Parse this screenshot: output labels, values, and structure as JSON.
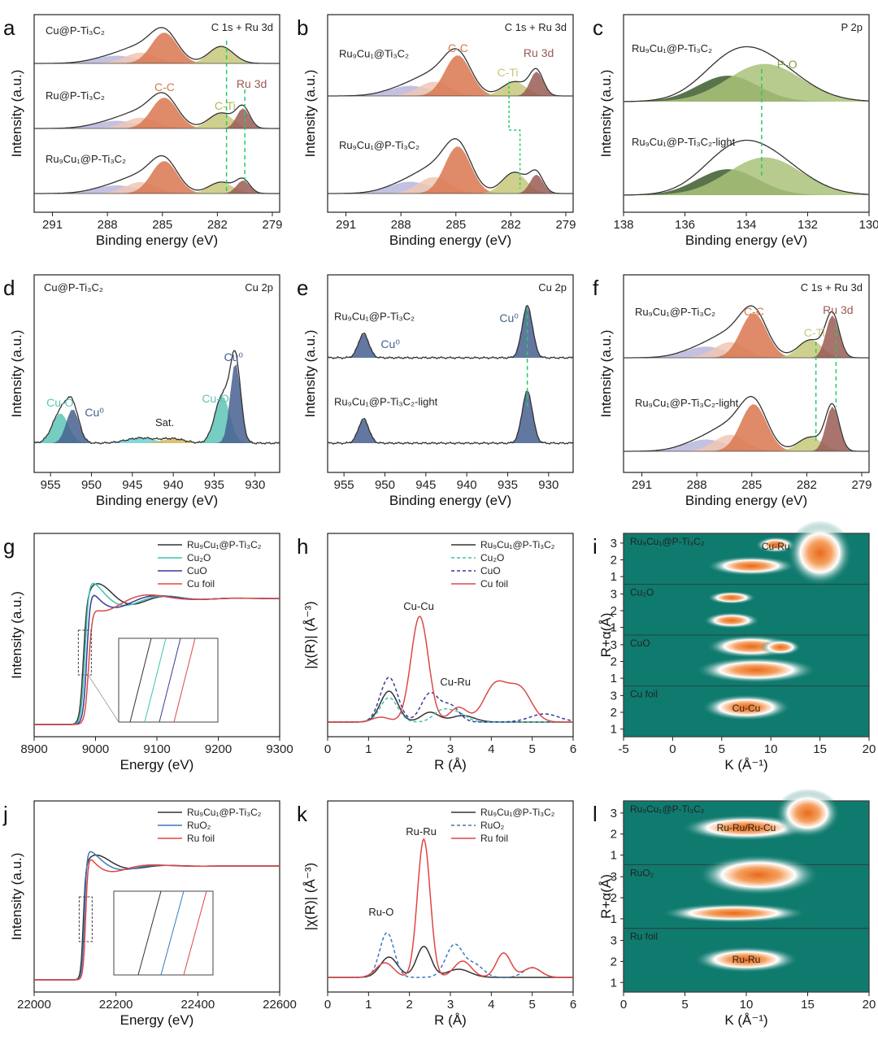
{
  "colors": {
    "cc": "#d9774f",
    "cti": "#c7c879",
    "ru": "#9a5a55",
    "green": "#5aa033",
    "cuo": "#5ec4b6",
    "cu0": "#46608f",
    "sat": "#6fd0d8",
    "sat2": "#d8b85a",
    "black": "#333333",
    "cu2o": "#3cc4b0",
    "cuo_line": "#3a3a9a",
    "cufoil": "#d94a4a",
    "ruo2": "#3a7ab8",
    "rufoil": "#e04545",
    "dashgreen": "#22cc66",
    "wavebg": "#0f7a6e"
  },
  "chart_data": [
    {
      "panel": "a",
      "type": "area",
      "ylabel": "Intensity (a.u.)",
      "xlabel": "Binding energy (eV)",
      "xlim": [
        292,
        278.6
      ],
      "xticks": [
        291,
        288,
        285,
        282,
        279
      ],
      "corner": "C 1s + Ru 3d",
      "series": [
        {
          "name": "Cu@P-Ti₃C₂",
          "components": [
            "C-C",
            "C-Ti"
          ]
        },
        {
          "name": "Ru@P-Ti₃C₂",
          "components": [
            "C-C",
            "C-Ti",
            "Ru 3d"
          ]
        },
        {
          "name": "Ru₉Cu₁@P-Ti₃C₂",
          "components": [
            "C-C",
            "C-Ti",
            "Ru 3d"
          ]
        }
      ],
      "labels": [
        "C-C",
        "C-Ti",
        "Ru 3d"
      ]
    },
    {
      "panel": "b",
      "type": "area",
      "ylabel": "Intensity (a.u.)",
      "xlabel": "Binding energy (eV)",
      "xlim": [
        292,
        278.6
      ],
      "xticks": [
        291,
        288,
        285,
        282,
        279
      ],
      "corner": "C 1s + Ru 3d",
      "series": [
        {
          "name": "Ru₉Cu₁@Ti₃C₂"
        },
        {
          "name": "Ru₉Cu₁@P-Ti₃C₂"
        }
      ],
      "labels": [
        "C-C",
        "C-Ti",
        "Ru 3d"
      ]
    },
    {
      "panel": "c",
      "type": "area",
      "ylabel": "Intensity (a.u.)",
      "xlabel": "Binding energy (eV)",
      "xlim": [
        138,
        130
      ],
      "xticks": [
        138,
        136,
        134,
        132,
        130
      ],
      "corner": "P 2p",
      "series": [
        {
          "name": "Ru₉Cu₁@P-Ti₃C₂"
        },
        {
          "name": "Ru₉Cu₁@P-Ti₃C₂-light"
        }
      ],
      "labels": [
        "P-O"
      ]
    },
    {
      "panel": "d",
      "type": "area",
      "ylabel": "Intensity (a.u.)",
      "xlabel": "Binding energy (eV)",
      "xlim": [
        957,
        927
      ],
      "xticks": [
        955,
        950,
        945,
        940,
        935,
        930
      ],
      "corner": "Cu 2p",
      "series": [
        {
          "name": "Cu@P-Ti₃C₂"
        }
      ],
      "labels": [
        "Cu-O",
        "Cu⁰",
        "Sat.",
        "Cu-O",
        "Cu⁰"
      ]
    },
    {
      "panel": "e",
      "type": "area",
      "ylabel": "Intensity (a.u.)",
      "xlabel": "Binding energy (eV)",
      "xlim": [
        957,
        927
      ],
      "xticks": [
        955,
        950,
        945,
        940,
        935,
        930
      ],
      "corner": "Cu 2p",
      "series": [
        {
          "name": "Ru₉Cu₁@P-Ti₃C₂"
        },
        {
          "name": "Ru₉Cu₁@P-Ti₃C₂-light"
        }
      ],
      "labels": [
        "Cu⁰",
        "Cu⁰"
      ]
    },
    {
      "panel": "f",
      "type": "area",
      "ylabel": "Intensity (a.u.)",
      "xlabel": "Binding energy (eV)",
      "xlim": [
        292,
        278.6
      ],
      "xticks": [
        291,
        288,
        285,
        282,
        279
      ],
      "corner": "C 1s + Ru 3d",
      "series": [
        {
          "name": "Ru₉Cu₁@P-Ti₃C₂"
        },
        {
          "name": "Ru₉Cu₁@P-Ti₃C₂-light"
        }
      ],
      "labels": [
        "C-C",
        "C-Ti",
        "Ru 3d"
      ]
    },
    {
      "panel": "g",
      "type": "line",
      "ylabel": "Intensity (a.u.)",
      "xlabel": "Energy (eV)",
      "xlim": [
        8900,
        9300
      ],
      "xticks": [
        8900,
        9000,
        9100,
        9200,
        9300
      ],
      "legend": [
        "Ru₉Cu₁@P-Ti₃C₂",
        "Cu₂O",
        "CuO",
        "Cu foil"
      ]
    },
    {
      "panel": "h",
      "type": "line",
      "ylabel": "|χ(R)| (Å⁻³)",
      "xlabel": "R (Å)",
      "xlim": [
        0,
        6
      ],
      "xticks": [
        0,
        1,
        2,
        3,
        4,
        5,
        6
      ],
      "legend": [
        "Ru₉Cu₁@P-Ti₃C₂",
        "Cu₂O",
        "CuO",
        "Cu foil"
      ],
      "labels": [
        "Cu-Cu",
        "Cu-Ru"
      ]
    },
    {
      "panel": "i",
      "type": "heatmap",
      "ylabel": "R+α(Å)",
      "xlabel": "K (Å⁻¹)",
      "xlim": [
        -5,
        20
      ],
      "xticks": [
        -5,
        0,
        5,
        10,
        15,
        20
      ],
      "yticks": [
        1,
        2,
        3
      ],
      "rows": [
        "Ru₉Cu₁@P-Ti₃C₂",
        "Cu₂O",
        "CuO",
        "Cu foil"
      ],
      "labels": [
        "Cu-Ru",
        "Cu-Cu"
      ]
    },
    {
      "panel": "j",
      "type": "line",
      "ylabel": "Intensity (a.u.)",
      "xlabel": "Energy (eV)",
      "xlim": [
        22000,
        22600
      ],
      "xticks": [
        22000,
        22200,
        22400,
        22600
      ],
      "legend": [
        "Ru₉Cu₁@P-Ti₃C₂",
        "RuO₂",
        "Ru foil"
      ]
    },
    {
      "panel": "k",
      "type": "line",
      "ylabel": "|χ(R)| (Å⁻³)",
      "xlabel": "R (Å)",
      "xlim": [
        0,
        6
      ],
      "xticks": [
        0,
        1,
        2,
        3,
        4,
        5,
        6
      ],
      "legend": [
        "Ru₉Cu₁@P-Ti₃C₂",
        "RuO₂",
        "Ru foil"
      ],
      "labels": [
        "Ru-O",
        "Ru-Ru"
      ]
    },
    {
      "panel": "l",
      "type": "heatmap",
      "ylabel": "R+α(Å)",
      "xlabel": "K (Å⁻¹)",
      "xlim": [
        0,
        20
      ],
      "xticks": [
        0,
        5,
        10,
        15,
        20
      ],
      "yticks": [
        1,
        2,
        3
      ],
      "rows": [
        "Ru₉Cu₁@P-Ti₃C₂",
        "RuO₂",
        "Ru foil"
      ],
      "labels": [
        "Ru-Ru/Ru-Cu",
        "Ru-Ru"
      ]
    }
  ]
}
